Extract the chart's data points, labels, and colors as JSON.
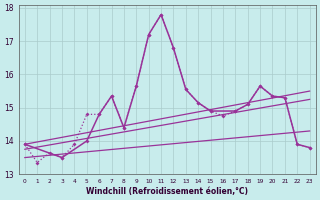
{
  "xlabel": "Windchill (Refroidissement éolien,°C)",
  "xlim": [
    -0.5,
    23.5
  ],
  "ylim": [
    13,
    18.1
  ],
  "xticks": [
    0,
    1,
    2,
    3,
    4,
    5,
    6,
    7,
    8,
    9,
    10,
    11,
    12,
    13,
    14,
    15,
    16,
    17,
    18,
    19,
    20,
    21,
    22,
    23
  ],
  "yticks": [
    13,
    14,
    15,
    16,
    17,
    18
  ],
  "background_color": "#c8ecec",
  "grid_color": "#aacccc",
  "line_color": "#993399",
  "series": {
    "spiky_dotted": {
      "x": [
        0,
        1,
        2,
        3,
        4,
        5,
        6,
        7,
        8,
        9,
        10,
        11,
        12,
        13,
        14,
        15,
        16,
        17,
        18,
        19,
        20,
        21,
        22,
        23
      ],
      "y": [
        13.9,
        13.35,
        13.65,
        13.5,
        13.9,
        14.8,
        14.8,
        15.35,
        14.4,
        15.65,
        17.2,
        17.8,
        16.8,
        15.55,
        15.15,
        14.9,
        14.75,
        14.9,
        15.1,
        15.65,
        15.35,
        15.3,
        13.9,
        13.8
      ]
    },
    "spiky_solid": {
      "x": [
        0,
        3,
        5,
        6,
        7,
        8,
        9,
        10,
        11,
        12,
        13,
        14,
        15,
        17,
        18,
        19,
        20,
        21,
        22,
        23
      ],
      "y": [
        13.9,
        13.5,
        14.0,
        14.8,
        15.35,
        14.4,
        15.65,
        17.2,
        17.8,
        16.8,
        15.55,
        15.15,
        14.9,
        14.9,
        15.1,
        15.65,
        15.35,
        15.3,
        13.9,
        13.8
      ]
    },
    "trend_upper": {
      "x": [
        0,
        23
      ],
      "y": [
        13.9,
        15.5
      ]
    },
    "trend_lower": {
      "x": [
        0,
        23
      ],
      "y": [
        13.5,
        14.3
      ]
    },
    "trend_mid": {
      "x": [
        0,
        23
      ],
      "y": [
        13.75,
        15.25
      ]
    }
  }
}
